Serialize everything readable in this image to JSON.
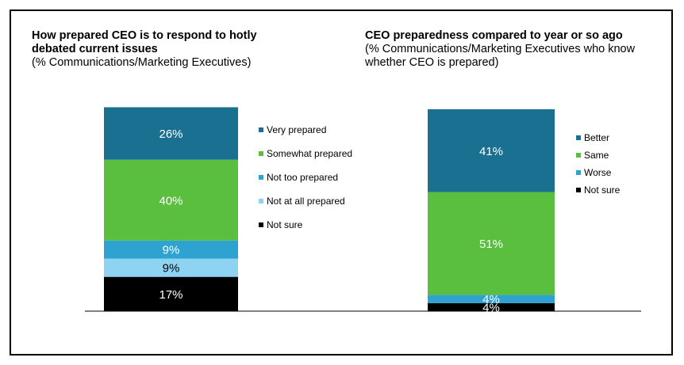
{
  "colors": {
    "very_dark_blue": "#1a7090",
    "green": "#5abf3e",
    "medium_blue": "#2ea3d1",
    "light_blue": "#8fd3f3",
    "black": "#000000"
  },
  "chart_data": [
    {
      "type": "bar",
      "stacked": true,
      "title": "How prepared CEO is to respond to hotly debated current issues",
      "subtitle": "(% Communications/Marketing Executives)",
      "title_line1": "How prepared CEO is to respond to hotly",
      "title_line2": "debated current issues",
      "series": [
        {
          "name": "Very prepared",
          "value": 26,
          "label": "26%",
          "color": "#1a7090",
          "label_color": "#ffffff"
        },
        {
          "name": "Somewhat prepared",
          "value": 40,
          "label": "40%",
          "color": "#5abf3e",
          "label_color": "#ffffff"
        },
        {
          "name": "Not too prepared",
          "value": 9,
          "label": "9%",
          "color": "#2ea3d1",
          "label_color": "#ffffff"
        },
        {
          "name": "Not at all prepared",
          "value": 9,
          "label": "9%",
          "color": "#8fd3f3",
          "label_color": "#000000"
        },
        {
          "name": "Not sure",
          "value": 17,
          "label": "17%",
          "color": "#000000",
          "label_color": "#ffffff"
        }
      ],
      "legend": [
        "Very prepared",
        "Somewhat prepared",
        "Not too prepared",
        "Not at all prepared",
        "Not sure"
      ]
    },
    {
      "type": "bar",
      "stacked": true,
      "title": "CEO preparedness compared to year or so ago",
      "subtitle_line1": "(% Communications/Marketing Executives who know",
      "subtitle_line2": "whether CEO is prepared)",
      "series": [
        {
          "name": "Better",
          "value": 41,
          "label": "41%",
          "color": "#1a7090",
          "label_color": "#ffffff"
        },
        {
          "name": "Same",
          "value": 51,
          "label": "51%",
          "color": "#5abf3e",
          "label_color": "#ffffff"
        },
        {
          "name": "Worse",
          "value": 4,
          "label": "4%",
          "color": "#2ea3d1",
          "label_color": "#ffffff"
        },
        {
          "name": "Not sure",
          "value": 4,
          "label": "4%",
          "color": "#000000",
          "label_color": "#ffffff"
        }
      ],
      "legend": [
        "Better",
        "Same",
        "Worse",
        "Not sure"
      ]
    }
  ]
}
